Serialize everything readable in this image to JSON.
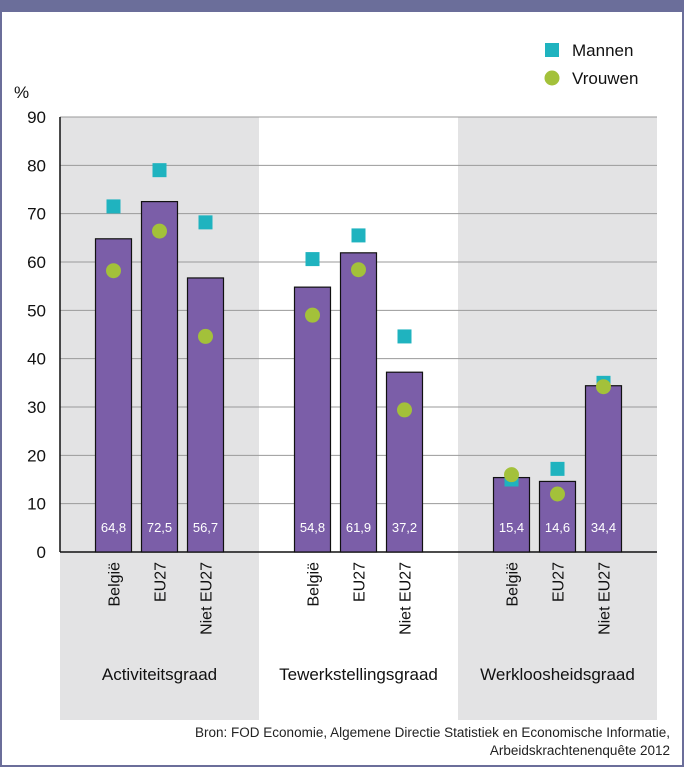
{
  "chart_data": {
    "type": "bar",
    "ylabel": "%",
    "ylim": [
      0,
      90
    ],
    "yticks": [
      0,
      10,
      20,
      30,
      40,
      50,
      60,
      70,
      80,
      90
    ],
    "grid": true,
    "legend_position": "top-right",
    "groups": [
      {
        "label": "Activiteitsgraad",
        "shaded": true
      },
      {
        "label": "Tewerkstellingsgraad",
        "shaded": false
      },
      {
        "label": "Werkloosheidsgraad",
        "shaded": true
      }
    ],
    "categories": [
      "België",
      "EU27",
      "Niet EU27"
    ],
    "series": [
      {
        "name": "",
        "kind": "bar",
        "color": "#7b5ea8",
        "values": [
          [
            64.8,
            72.5,
            56.7
          ],
          [
            54.8,
            61.9,
            37.2
          ],
          [
            15.4,
            14.6,
            34.4
          ]
        ],
        "labels": [
          [
            "64,8",
            "72,5",
            "56,7"
          ],
          [
            "54,8",
            "61,9",
            "37,2"
          ],
          [
            "15,4",
            "14,6",
            "34,4"
          ]
        ]
      },
      {
        "name": "Mannen",
        "kind": "square",
        "color": "#1fb3bf",
        "values": [
          [
            71.5,
            79,
            68.2
          ],
          [
            60.6,
            65.5,
            44.6
          ],
          [
            15,
            17.2,
            35
          ]
        ]
      },
      {
        "name": "Vrouwen",
        "kind": "circle",
        "color": "#a3c13a",
        "values": [
          [
            58.2,
            66.4,
            44.6
          ],
          [
            49,
            58.4,
            29.4
          ],
          [
            16,
            12,
            34.2
          ]
        ]
      }
    ]
  },
  "source": "Bron: FOD Economie, Algemene Directie Statistiek en Economische Informatie, Arbeidskrachtenenquête 2012"
}
